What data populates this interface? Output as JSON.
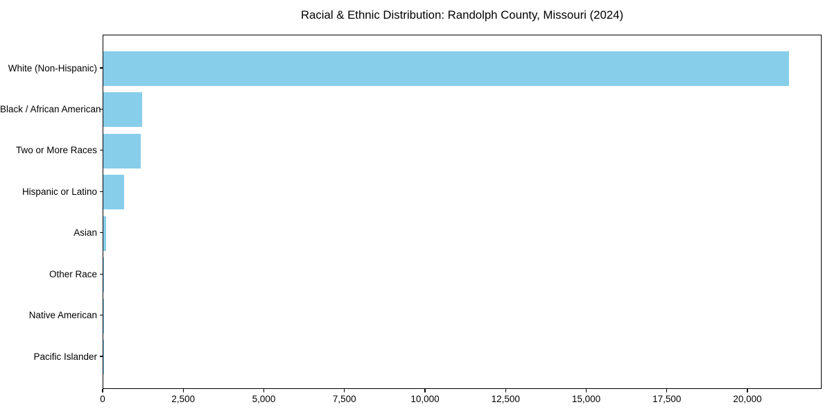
{
  "title": "Racial & Ethnic Distribution: Randolph County, Missouri (2024)",
  "chart_data": {
    "type": "bar",
    "orientation": "horizontal",
    "title": "Racial & Ethnic Distribution: Randolph County, Missouri (2024)",
    "categories": [
      "White (Non-Hispanic)",
      "Black / African American",
      "Two or More Races",
      "Hispanic or Latino",
      "Asian",
      "Other Race",
      "Native American",
      "Pacific Islander"
    ],
    "values": [
      21270,
      1200,
      1160,
      645,
      85,
      10,
      6,
      3
    ],
    "xlabel": "",
    "ylabel": "",
    "xlim": [
      0,
      22300
    ],
    "x_ticks": [
      0,
      2500,
      5000,
      7500,
      10000,
      12500,
      15000,
      17500,
      20000
    ],
    "x_tick_labels": [
      "0",
      "2,500",
      "5,000",
      "7,500",
      "10,000",
      "12,500",
      "15,000",
      "17,500",
      "20,000"
    ],
    "bar_color": "#87CEEB",
    "text_color": "#000000",
    "grid": false,
    "legend": false,
    "largest_bar_label": "White (Non-Hispanic)",
    "largest_bar_value": 21270
  }
}
